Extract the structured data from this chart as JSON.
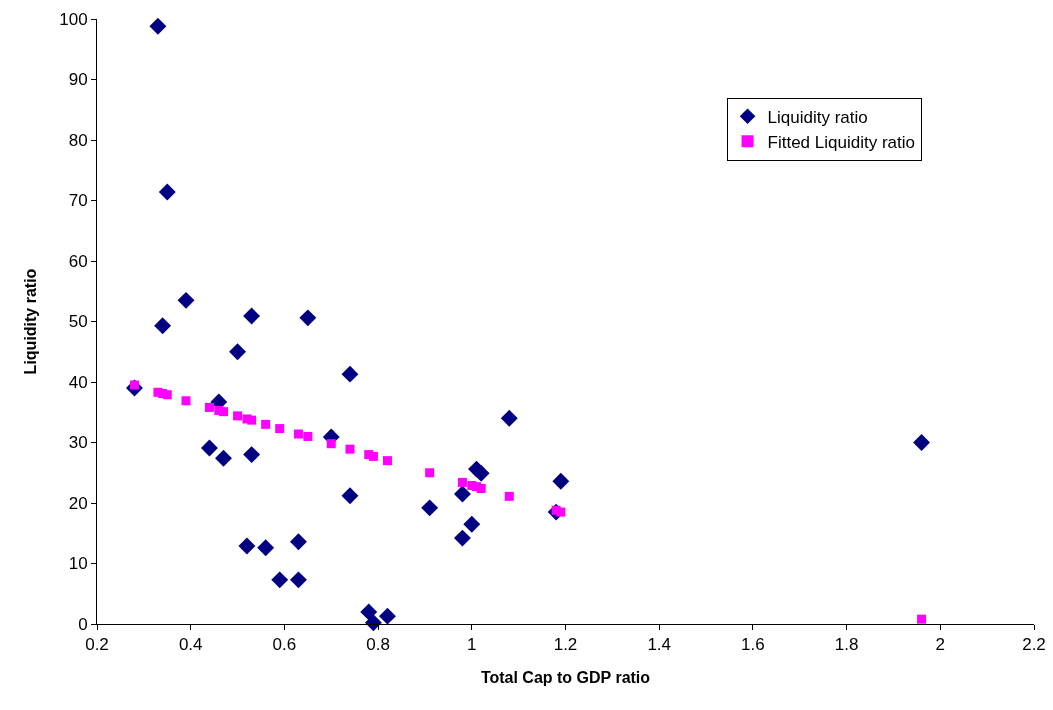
{
  "chart_data": {
    "type": "scatter",
    "xlabel": "Total Cap to GDP ratio",
    "ylabel": "Liquidity ratio",
    "xlim": [
      0.2,
      2.2
    ],
    "xticks": [
      0.2,
      0.4,
      0.6,
      0.8,
      1,
      1.2,
      1.4,
      1.6,
      1.8,
      2,
      2.2
    ],
    "ylim": [
      0,
      100
    ],
    "yticks": [
      0,
      10,
      20,
      30,
      40,
      50,
      60,
      70,
      80,
      90,
      100
    ],
    "grid": false,
    "legend": "top right",
    "series": [
      {
        "name": "Liquidity ratio",
        "color": "#000080",
        "marker": "diamond",
        "x": [
          0.33,
          0.35,
          0.39,
          0.34,
          0.53,
          0.65,
          0.5,
          0.74,
          0.28,
          0.46,
          0.44,
          0.47,
          0.53,
          0.7,
          1.08,
          0.74,
          0.52,
          0.56,
          0.63,
          0.59,
          0.63,
          0.78,
          0.79,
          0.82,
          0.91,
          0.98,
          0.98,
          1.0,
          1.01,
          1.02,
          1.19,
          1.18,
          1.96
        ],
        "values": [
          98.8,
          71.4,
          53.5,
          49.3,
          50.9,
          50.6,
          45.0,
          41.3,
          39.0,
          36.7,
          29.1,
          27.4,
          28.0,
          30.9,
          34.0,
          21.2,
          12.9,
          12.6,
          13.6,
          7.3,
          7.3,
          2.0,
          0.2,
          1.3,
          19.2,
          14.2,
          21.5,
          16.5,
          25.6,
          24.9,
          23.6,
          18.5,
          30.0
        ]
      },
      {
        "name": "Fitted Liquidity ratio",
        "color": "#ff00ff",
        "marker": "square",
        "x": [
          0.28,
          0.33,
          0.34,
          0.35,
          0.39,
          0.44,
          0.46,
          0.47,
          0.5,
          0.52,
          0.53,
          0.56,
          0.59,
          0.63,
          0.65,
          0.7,
          0.74,
          0.78,
          0.79,
          0.82,
          0.91,
          0.98,
          1.0,
          1.01,
          1.02,
          1.08,
          1.18,
          1.19,
          1.96
        ],
        "values": [
          39.5,
          38.3,
          38.1,
          37.9,
          36.9,
          35.8,
          35.3,
          35.1,
          34.4,
          33.9,
          33.7,
          33.0,
          32.3,
          31.4,
          31.0,
          29.8,
          28.9,
          28.0,
          27.7,
          27.0,
          25.0,
          23.4,
          22.9,
          22.7,
          22.4,
          21.1,
          18.8,
          18.5,
          0.8
        ]
      }
    ]
  }
}
